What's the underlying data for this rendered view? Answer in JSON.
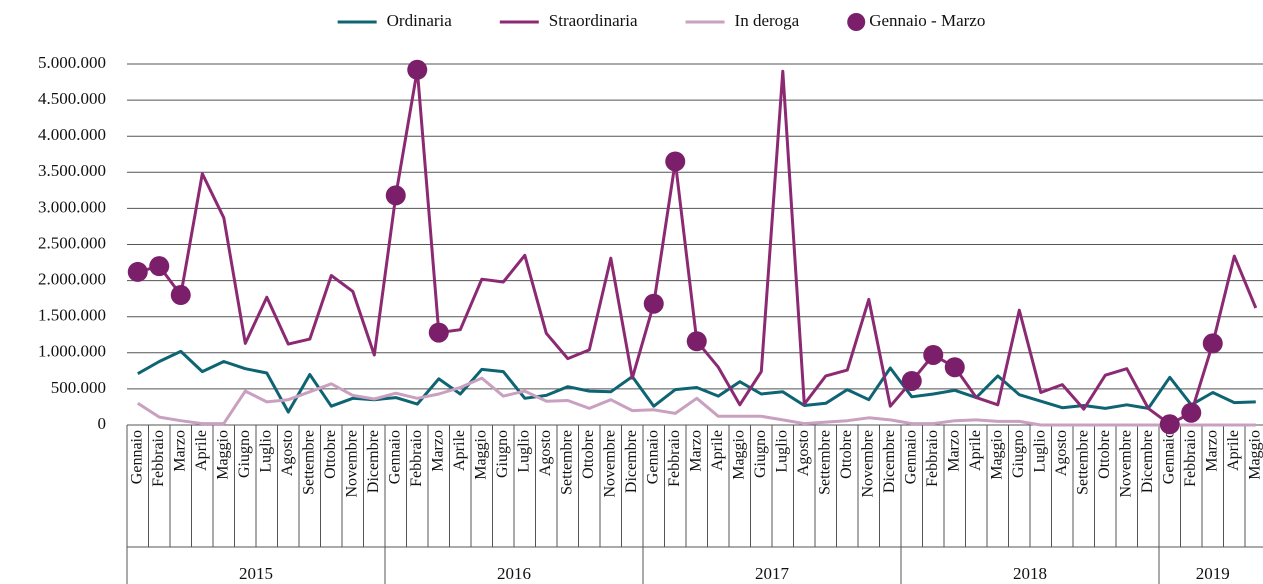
{
  "chart_data": {
    "type": "line",
    "categories": [
      "Gennaio",
      "Febbraio",
      "Marzo",
      "Aprile",
      "Maggio",
      "Giugno",
      "Luglio",
      "Agosto",
      "Settembre",
      "Ottobre",
      "Novembre",
      "Dicembre",
      "Gennaio",
      "Febbraio",
      "Marzo",
      "Aprile",
      "Maggio",
      "Giugno",
      "Luglio",
      "Agosto",
      "Settembre",
      "Ottobre",
      "Novembre",
      "Dicembre",
      "Gennaio",
      "Febbraio",
      "Marzo",
      "Aprile",
      "Maggio",
      "Giugno",
      "Luglio",
      "Agosto",
      "Settembre",
      "Ottobre",
      "Novembre",
      "Dicembre",
      "Gennaio",
      "Febbraio",
      "Marzo",
      "Aprile",
      "Maggio",
      "Giugno",
      "Luglio",
      "Agosto",
      "Settembre",
      "Ottobre",
      "Novembre",
      "Dicembre",
      "Gennaio",
      "Febbraio",
      "Marzo",
      "Aprile",
      "Maggio"
    ],
    "years": [
      "2015",
      "2016",
      "2017",
      "2018",
      "2019"
    ],
    "series": [
      {
        "name": "Ordinaria",
        "color": "#0e6472",
        "kind": "line",
        "values": [
          710000,
          880000,
          1020000,
          740000,
          880000,
          780000,
          720000,
          180000,
          700000,
          260000,
          370000,
          350000,
          380000,
          290000,
          640000,
          430000,
          770000,
          740000,
          370000,
          410000,
          530000,
          470000,
          460000,
          670000,
          260000,
          490000,
          520000,
          400000,
          600000,
          430000,
          460000,
          270000,
          300000,
          490000,
          350000,
          790000,
          390000,
          430000,
          480000,
          380000,
          680000,
          420000,
          330000,
          240000,
          270000,
          230000,
          280000,
          230000,
          660000,
          280000,
          450000,
          310000,
          320000
        ]
      },
      {
        "name": "Straordinaria",
        "color": "#8b2a73",
        "kind": "line",
        "values": [
          2120000,
          2200000,
          1800000,
          3480000,
          2870000,
          1130000,
          1770000,
          1120000,
          1190000,
          2070000,
          1850000,
          970000,
          3180000,
          4920000,
          1280000,
          1320000,
          2020000,
          1980000,
          2350000,
          1270000,
          920000,
          1040000,
          2310000,
          650000,
          1680000,
          3650000,
          1160000,
          800000,
          280000,
          740000,
          4900000,
          290000,
          680000,
          760000,
          1740000,
          260000,
          610000,
          970000,
          800000,
          380000,
          280000,
          1590000,
          450000,
          560000,
          220000,
          690000,
          780000,
          230000,
          10000,
          170000,
          1130000,
          2340000,
          1620000
        ]
      },
      {
        "name": "In deroga",
        "color": "#c9a0c0",
        "kind": "line",
        "values": [
          300000,
          110000,
          60000,
          20000,
          20000,
          470000,
          320000,
          350000,
          460000,
          570000,
          410000,
          360000,
          440000,
          370000,
          430000,
          520000,
          650000,
          400000,
          470000,
          330000,
          340000,
          230000,
          350000,
          200000,
          210000,
          160000,
          370000,
          120000,
          120000,
          120000,
          70000,
          20000,
          40000,
          60000,
          100000,
          70000,
          20000,
          20000,
          60000,
          70000,
          50000,
          50000,
          0,
          0,
          0,
          0,
          0,
          0,
          0,
          0,
          0,
          0,
          0
        ]
      },
      {
        "name": "Gennaio - Marzo",
        "color": "#7b1f6b",
        "kind": "marker",
        "values": [
          2120000,
          2200000,
          1800000,
          null,
          null,
          null,
          null,
          null,
          null,
          null,
          null,
          null,
          3180000,
          4920000,
          1280000,
          null,
          null,
          null,
          null,
          null,
          null,
          null,
          null,
          null,
          1680000,
          3650000,
          1160000,
          null,
          null,
          null,
          null,
          null,
          null,
          null,
          null,
          null,
          610000,
          970000,
          800000,
          null,
          null,
          null,
          null,
          null,
          null,
          null,
          null,
          null,
          10000,
          170000,
          1130000,
          null,
          null
        ]
      }
    ],
    "ylim": [
      0,
      5000000
    ],
    "yticks": [
      0,
      {
        "value": 500000,
        "label": "500.000"
      },
      {
        "value": 1000000,
        "label": "1.000.000"
      },
      {
        "value": 1500000,
        "label": "1.500.000"
      },
      {
        "value": 2000000,
        "label": "2.000.000"
      },
      {
        "value": 2500000,
        "label": "2.500.000"
      },
      {
        "value": 3000000,
        "label": "3.000.000"
      },
      {
        "value": 3500000,
        "label": "3.500.000"
      },
      {
        "value": 4000000,
        "label": "4.000.000"
      },
      {
        "value": 4500000,
        "label": "4.500.000"
      },
      {
        "value": 5000000,
        "label": "5.000.000"
      }
    ],
    "grid": true,
    "legend": "top"
  }
}
